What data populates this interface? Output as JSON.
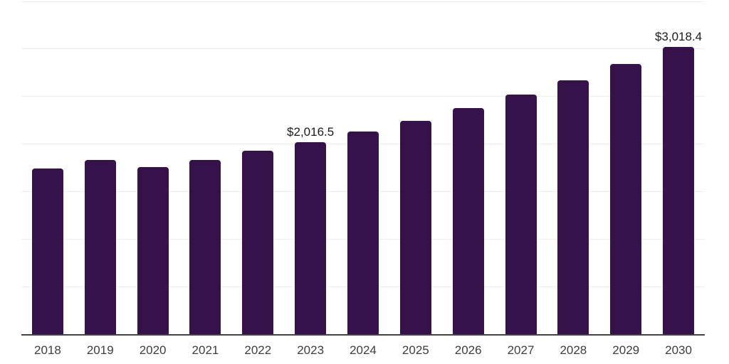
{
  "chart_data": {
    "type": "bar",
    "title": "",
    "xlabel": "",
    "ylabel": "",
    "categories": [
      "2018",
      "2019",
      "2020",
      "2021",
      "2022",
      "2023",
      "2024",
      "2025",
      "2026",
      "2027",
      "2028",
      "2029",
      "2030"
    ],
    "values": [
      1744,
      1827,
      1755,
      1834,
      1925,
      2016.5,
      2133,
      2245,
      2376,
      2518,
      2668,
      2836,
      3018.4
    ],
    "labeled_points": {
      "2023": "$2,016.5",
      "2030": "$3,018.4"
    },
    "ylim": [
      0,
      3500
    ],
    "gridline_step": 500,
    "grid": true,
    "legend": false,
    "yaxis_labels_visible": false
  },
  "style": {
    "bar_color": "#36124B",
    "gridline_color": "#efefef",
    "axis_line_color": "#424242",
    "tick_label_color": "#3d3d3d",
    "data_label_color": "#1a1a1a",
    "background_color": "#ffffff"
  }
}
